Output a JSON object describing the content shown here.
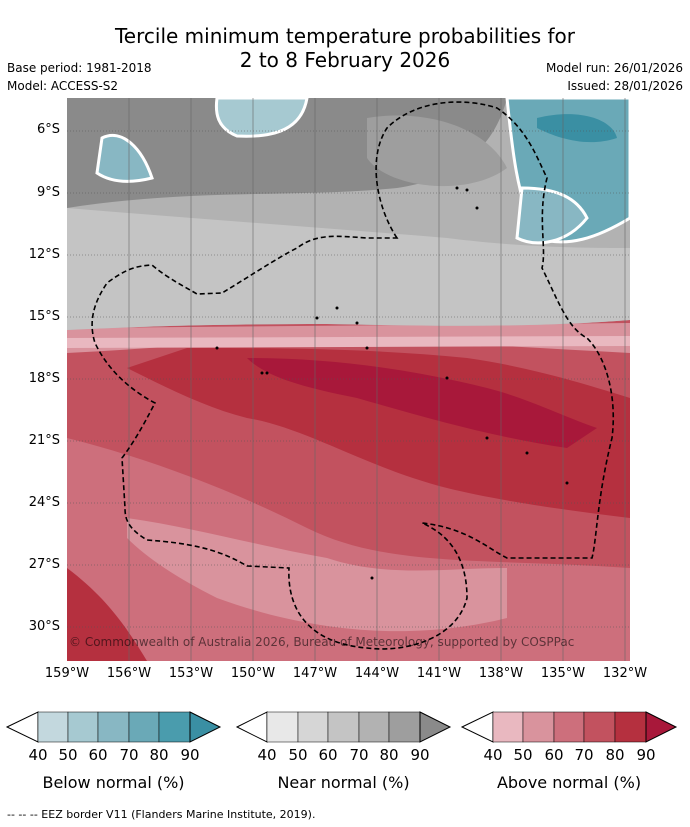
{
  "title_line1": "Tercile minimum temperature probabilities for",
  "title_line2": "2 to 8 February 2026",
  "meta_left": [
    "Base period: 1981-2018",
    "Model: ACCESS-S2"
  ],
  "meta_right": [
    "Model run: 26/01/2026",
    "Issued: 28/01/2026"
  ],
  "lat_labels": [
    "6°S",
    "9°S",
    "12°S",
    "15°S",
    "18°S",
    "21°S",
    "24°S",
    "27°S",
    "30°S"
  ],
  "lon_labels": [
    "159°W",
    "156°W",
    "153°W",
    "150°W",
    "147°W",
    "144°W",
    "141°W",
    "138°W",
    "135°W",
    "132°W"
  ],
  "copyright": "© Commonwealth of Australia 2026, Bureau of Meteorology, supported by COSPPac",
  "colorbars": [
    {
      "label": "Below normal (%)",
      "ticks": [
        "40",
        "50",
        "60",
        "70",
        "80",
        "90"
      ],
      "colors": [
        "#c3d8de",
        "#a6c9d1",
        "#88b7c3",
        "#6aa9b7",
        "#4a9cad"
      ],
      "tip": "#3a8fa3"
    },
    {
      "label": "Near normal (%)",
      "ticks": [
        "40",
        "50",
        "60",
        "70",
        "80",
        "90"
      ],
      "colors": [
        "#e8e8e8",
        "#d6d6d6",
        "#c4c4c4",
        "#b2b2b2",
        "#9e9e9e"
      ],
      "tip": "#8a8a8a"
    },
    {
      "label": "Above normal (%)",
      "ticks": [
        "40",
        "50",
        "60",
        "70",
        "80",
        "90"
      ],
      "colors": [
        "#e9b8c0",
        "#d9939d",
        "#cd6f7c",
        "#c2525f",
        "#b5303f"
      ],
      "tip": "#a8183a"
    }
  ],
  "footer": "-- -- -- EEZ border V11 (Flanders Marine Institute, 2019)."
}
